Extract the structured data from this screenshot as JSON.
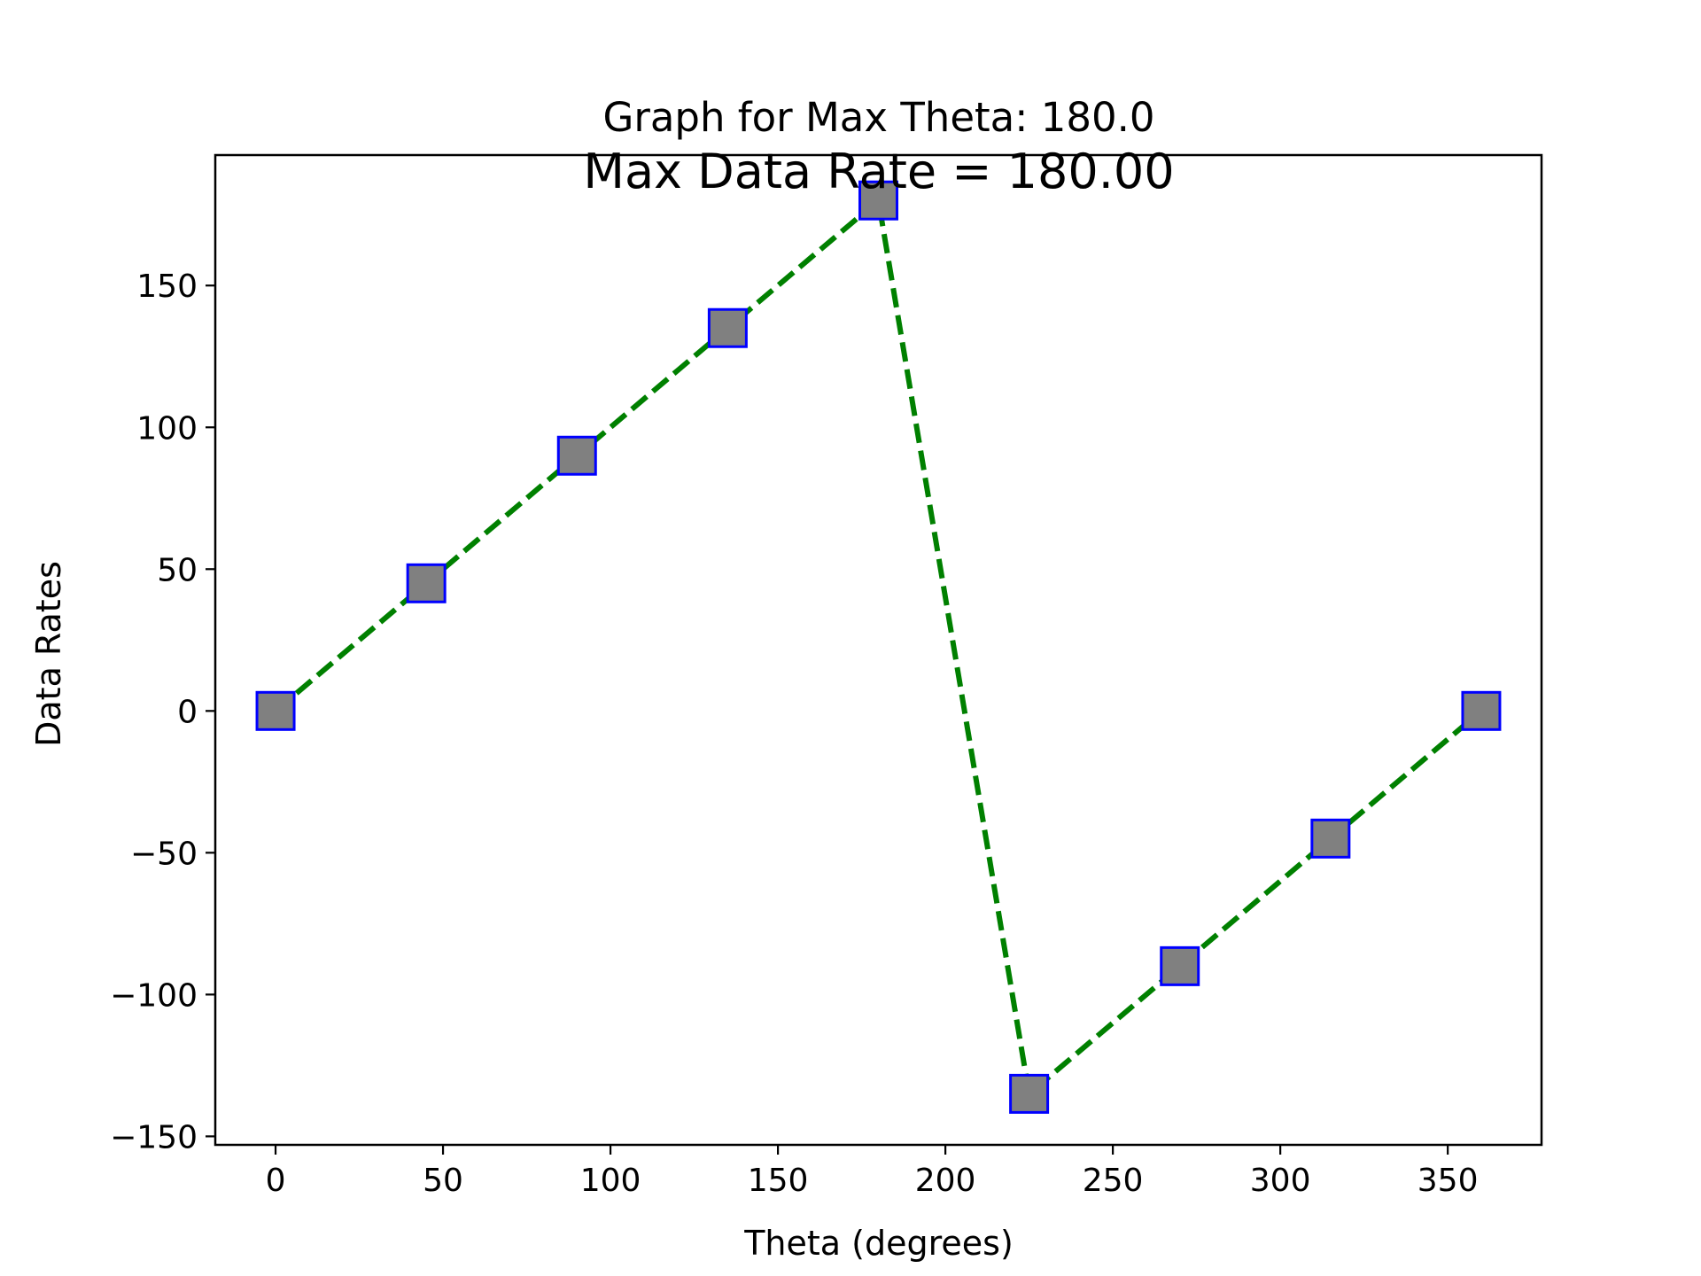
{
  "chart_data": {
    "type": "line",
    "title": "Graph for Max Theta: 180.0",
    "annotation": "Max Data Rate = 180.00",
    "xlabel": "Theta (degrees)",
    "ylabel": "Data Rates",
    "xlim": [
      -18,
      378
    ],
    "ylim": [
      -153,
      196
    ],
    "xticks": [
      0,
      50,
      100,
      150,
      200,
      250,
      300,
      350
    ],
    "yticks": [
      -150,
      -100,
      -50,
      0,
      50,
      100,
      150
    ],
    "xtick_labels": [
      "0",
      "50",
      "100",
      "150",
      "200",
      "250",
      "300",
      "350"
    ],
    "ytick_labels": [
      "−150",
      "−100",
      "−50",
      "0",
      "50",
      "100",
      "150"
    ],
    "grid": false,
    "legend": "none",
    "series": [
      {
        "x": [
          0,
          45,
          90,
          135,
          180,
          225,
          270,
          315,
          360
        ],
        "y": [
          0,
          45,
          90,
          135,
          180,
          -135,
          -90,
          -45,
          0
        ],
        "line_color": "#008000",
        "line_style": "dashed",
        "marker": "square",
        "marker_face": "#808080",
        "marker_edge": "#0000ff"
      }
    ]
  }
}
